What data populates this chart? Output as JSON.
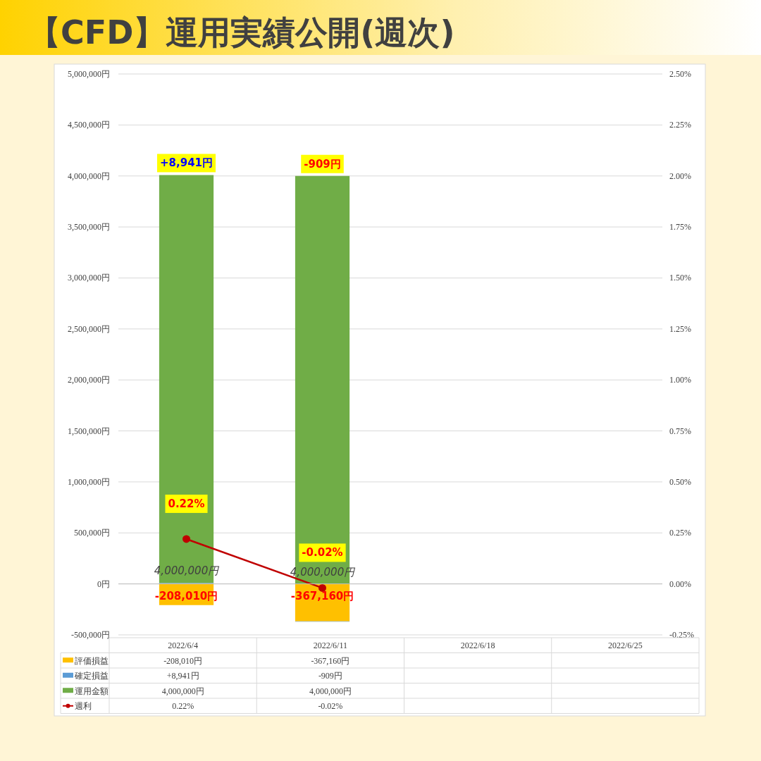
{
  "chart_data": {
    "type": "bar",
    "title": "【CFD】運用実績公開(週次)",
    "categories": [
      "2022/6/4",
      "2022/6/11",
      "2022/6/18",
      "2022/6/25"
    ],
    "stacked": true,
    "series": [
      {
        "name": "評価損益",
        "color": "#ffc000",
        "values": [
          -208010,
          -367160,
          null,
          null
        ],
        "value_labels": [
          "-208,010円",
          "-367,160円",
          null,
          null
        ]
      },
      {
        "name": "確定損益",
        "color": "#5b9bd5",
        "values": [
          8941,
          -909,
          null,
          null
        ],
        "value_labels": [
          "+8,941円",
          "-909円",
          null,
          null
        ]
      },
      {
        "name": "運用金額",
        "color": "#70ad47",
        "values": [
          4000000,
          4000000,
          null,
          null
        ],
        "value_labels": [
          "4,000,000円",
          "4,000,000円",
          null,
          null
        ]
      },
      {
        "name": "週利",
        "type": "line",
        "axis": "y2",
        "color": "#c00000",
        "marker": "circle",
        "values": [
          0.22,
          -0.02,
          null,
          null
        ],
        "value_labels": [
          "0.22%",
          "-0.02%",
          null,
          null
        ]
      }
    ],
    "ylim": [
      -500000,
      5000000
    ],
    "yticks": [
      {
        "value": -500000,
        "label": "-500,000円"
      },
      {
        "value": 0,
        "label": "0円"
      },
      {
        "value": 500000,
        "label": "500,000円"
      },
      {
        "value": 1000000,
        "label": "1,000,000円"
      },
      {
        "value": 1500000,
        "label": "1,500,000円"
      },
      {
        "value": 2000000,
        "label": "2,000,000円"
      },
      {
        "value": 2500000,
        "label": "2,500,000円"
      },
      {
        "value": 3000000,
        "label": "3,000,000円"
      },
      {
        "value": 3500000,
        "label": "3,500,000円"
      },
      {
        "value": 4000000,
        "label": "4,000,000円"
      },
      {
        "value": 4500000,
        "label": "4,500,000円"
      },
      {
        "value": 5000000,
        "label": "5,000,000円"
      }
    ],
    "y2lim": [
      -0.25,
      2.5
    ],
    "y2ticks": [
      {
        "value": -0.25,
        "label": "-0.25%"
      },
      {
        "value": 0,
        "label": "0.00%"
      },
      {
        "value": 0.25,
        "label": "0.25%"
      },
      {
        "value": 0.5,
        "label": "0.50%"
      },
      {
        "value": 0.75,
        "label": "0.75%"
      },
      {
        "value": 1,
        "label": "1.00%"
      },
      {
        "value": 1.25,
        "label": "1.25%"
      },
      {
        "value": 1.5,
        "label": "1.50%"
      },
      {
        "value": 1.75,
        "label": "1.75%"
      },
      {
        "value": 2,
        "label": "2.00%"
      },
      {
        "value": 2.25,
        "label": "2.25%"
      },
      {
        "value": 2.5,
        "label": "2.50%"
      }
    ],
    "grid": "y",
    "legend": "bottom"
  }
}
